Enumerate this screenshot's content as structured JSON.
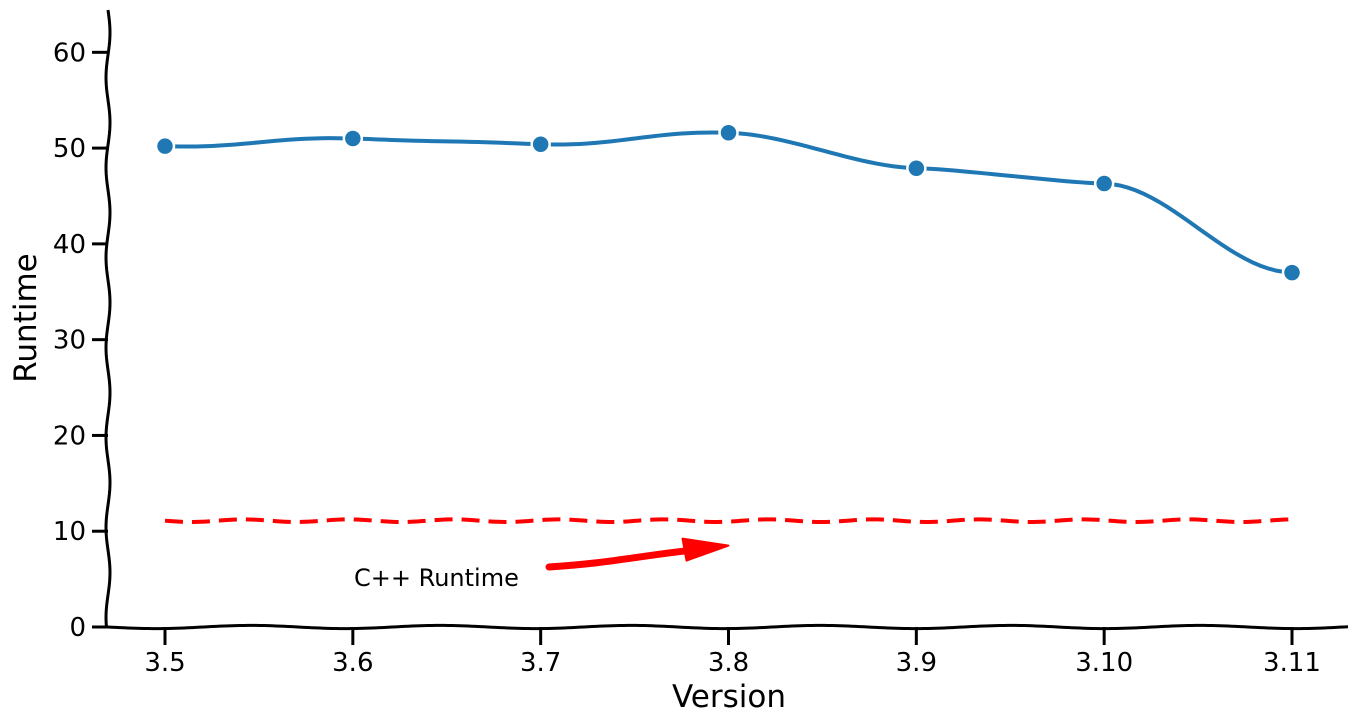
{
  "chart_data": {
    "type": "line",
    "categories": [
      "3.5",
      "3.6",
      "3.7",
      "3.8",
      "3.9",
      "3.10",
      "3.11"
    ],
    "series": [
      {
        "values": [
          50.2,
          51.0,
          50.4,
          51.6,
          47.9,
          46.3,
          37.0
        ],
        "color": "#1f77b4",
        "style": "solid",
        "markers": true
      },
      {
        "values": [
          11.1,
          11.1,
          11.1,
          11.1,
          11.1,
          11.1,
          11.1
        ],
        "color": "#ff0000",
        "style": "dashed",
        "markers": false
      }
    ],
    "xlabel": "Version",
    "ylabel": "Runtime",
    "ylim": [
      0,
      64
    ],
    "yticks": [
      0,
      10,
      20,
      30,
      40,
      50,
      60
    ],
    "grid": false,
    "legend": "none",
    "sketch_style": true,
    "annotation": {
      "text": "C++ Runtime",
      "arrow_color": "#ff0000",
      "points_to_category": "3.8",
      "points_to_value": 8.5
    }
  }
}
